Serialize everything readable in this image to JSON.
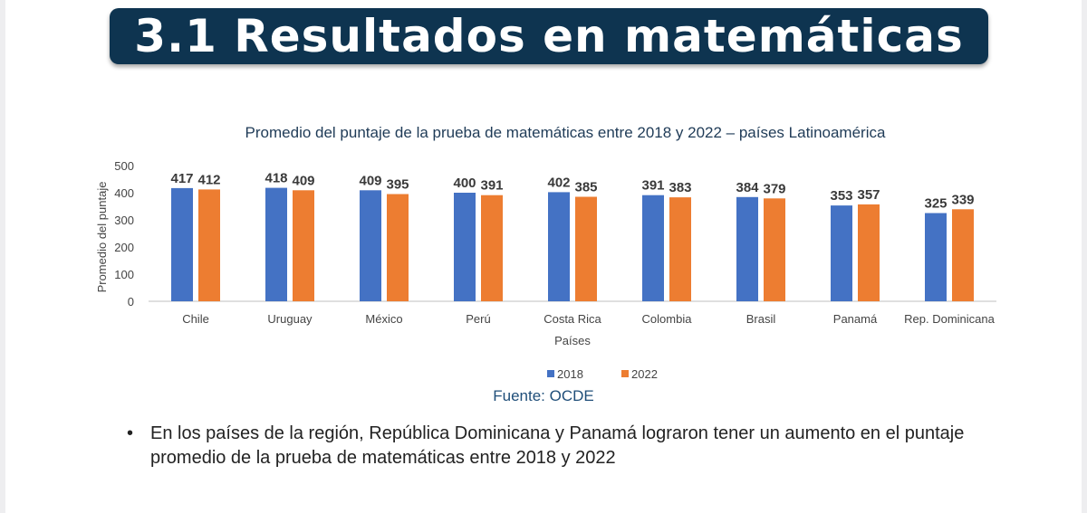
{
  "slide": {
    "title": "3.1 Resultados en matemáticas",
    "source": "Fuente: OCDE",
    "bullet_mark": "•",
    "bullet_text": "En los países de la región, República Dominicana y Panamá lograron tener un aumento en el puntaje promedio de la prueba de matemáticas entre 2018 y 2022"
  },
  "chart_data": {
    "type": "bar",
    "title": "Promedio del puntaje de la prueba de matemáticas entre 2018 y 2022 – países Latinoamérica",
    "xlabel": "Países",
    "ylabel": "Promedio del puntaje",
    "ylim": [
      0,
      500
    ],
    "yticks": [
      0,
      100,
      200,
      300,
      400,
      500
    ],
    "grid": false,
    "legend_position": "bottom",
    "categories": [
      "Chile",
      "Uruguay",
      "México",
      "Perú",
      "Costa Rica",
      "Colombia",
      "Brasil",
      "Panamá",
      "Rep. Dominicana"
    ],
    "series": [
      {
        "name": "2018",
        "color": "#4472c4",
        "values": [
          417,
          418,
          409,
          400,
          402,
          391,
          384,
          353,
          325
        ]
      },
      {
        "name": "2022",
        "color": "#ed7d31",
        "values": [
          412,
          409,
          395,
          391,
          385,
          383,
          379,
          357,
          339
        ]
      }
    ]
  }
}
